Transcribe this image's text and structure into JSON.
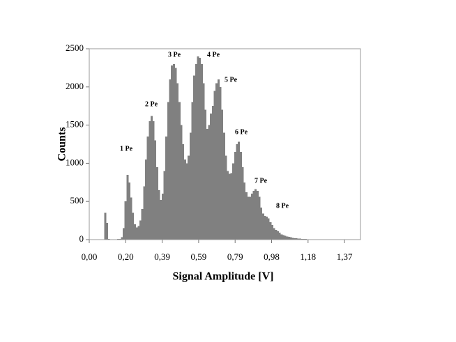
{
  "chart_data": {
    "type": "histogram",
    "x_label": "Signal Amplitude [V]",
    "y_label": "Counts",
    "color": "#808080",
    "xlim": [
      0,
      1.46
    ],
    "ylim": [
      0,
      2500
    ],
    "xticks": [
      {
        "value": 0,
        "label": "0,00"
      },
      {
        "value": 0.1963,
        "label": "0,20"
      },
      {
        "value": 0.3926,
        "label": "0,39"
      },
      {
        "value": 0.5889,
        "label": "0,59"
      },
      {
        "value": 0.7852,
        "label": "0,79"
      },
      {
        "value": 0.9815,
        "label": "0,98"
      },
      {
        "value": 1.1778,
        "label": "1,18"
      },
      {
        "value": 1.3741,
        "label": "1,37"
      }
    ],
    "yticks": [
      0,
      500,
      1000,
      1500,
      2000,
      2500
    ],
    "grid": false,
    "annotations": [
      "1 Pe",
      "2 Pe",
      "3 Pe",
      "4 Pe",
      "5 Pe",
      "6 Pe",
      "7 Pe",
      "8 Pe"
    ],
    "bins": [
      0.07,
      0.08,
      0.09,
      0.1,
      0.11,
      0.12,
      0.13,
      0.14,
      0.15,
      0.16,
      0.17,
      0.18,
      0.19,
      0.2,
      0.21,
      0.22,
      0.23,
      0.24,
      0.25,
      0.26,
      0.27,
      0.28,
      0.29,
      0.3,
      0.31,
      0.32,
      0.33,
      0.34,
      0.35,
      0.36,
      0.37,
      0.38,
      0.39,
      0.4,
      0.41,
      0.42,
      0.43,
      0.44,
      0.45,
      0.46,
      0.47,
      0.48,
      0.49,
      0.5,
      0.51,
      0.52,
      0.53,
      0.54,
      0.55,
      0.56,
      0.57,
      0.58,
      0.59,
      0.6,
      0.61,
      0.62,
      0.63,
      0.64,
      0.65,
      0.66,
      0.67,
      0.68,
      0.69,
      0.7,
      0.71,
      0.72,
      0.73,
      0.74,
      0.75,
      0.76,
      0.77,
      0.78,
      0.79,
      0.8,
      0.81,
      0.82,
      0.83,
      0.84,
      0.85,
      0.86,
      0.87,
      0.88,
      0.89,
      0.9,
      0.91,
      0.92,
      0.93,
      0.94,
      0.95,
      0.96,
      0.97,
      0.98,
      0.99,
      1.0,
      1.01,
      1.02,
      1.03,
      1.04,
      1.05,
      1.06,
      1.07,
      1.08,
      1.09,
      1.1,
      1.11,
      1.12,
      1.13,
      1.14,
      1.15,
      1.16,
      1.17,
      1.18,
      1.19,
      1.2,
      1.21,
      1.22,
      1.23,
      1.24,
      1.25,
      1.26,
      1.27,
      1.28,
      1.29,
      1.3,
      1.31,
      1.32,
      1.33,
      1.34,
      1.35,
      1.36,
      1.37,
      1.38,
      1.39,
      1.4,
      1.41,
      1.42,
      1.43,
      1.44,
      1.45,
      1.46
    ],
    "values": [
      0,
      350,
      220,
      10,
      5,
      5,
      5,
      5,
      8,
      10,
      30,
      150,
      500,
      850,
      750,
      550,
      350,
      200,
      160,
      180,
      250,
      400,
      700,
      1050,
      1350,
      1550,
      1620,
      1550,
      1300,
      950,
      650,
      520,
      600,
      900,
      1350,
      1800,
      2100,
      2280,
      2300,
      2250,
      2050,
      1800,
      1500,
      1250,
      1050,
      1000,
      1100,
      1400,
      1800,
      2150,
      2300,
      2400,
      2380,
      2300,
      2050,
      1700,
      1450,
      1500,
      1650,
      1750,
      1950,
      2050,
      2100,
      2000,
      1700,
      1400,
      1100,
      900,
      860,
      870,
      1000,
      1150,
      1250,
      1280,
      1150,
      950,
      750,
      620,
      560,
      560,
      600,
      640,
      660,
      640,
      560,
      420,
      340,
      310,
      300,
      280,
      230,
      190,
      150,
      130,
      110,
      90,
      70,
      60,
      50,
      40,
      35,
      30,
      25,
      20,
      18,
      15,
      12,
      10,
      8,
      7,
      6,
      5,
      5,
      4,
      4,
      3,
      3,
      3,
      2,
      2,
      2,
      2,
      2,
      1,
      1,
      1,
      1,
      1,
      1,
      1,
      1,
      1,
      1,
      1,
      1,
      1,
      1,
      1,
      1
    ]
  }
}
